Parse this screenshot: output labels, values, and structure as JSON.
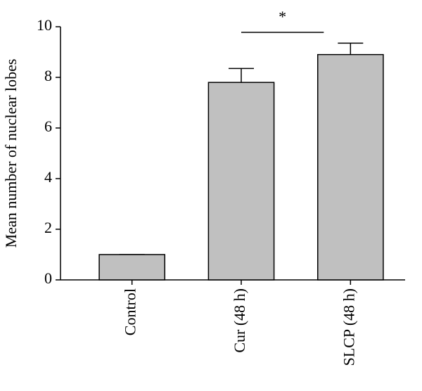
{
  "chart_data": {
    "type": "bar",
    "y_label": "Mean number of nuclear lobes",
    "categories": [
      "Control",
      "Cur (48 h)",
      "SLCP (48 h)"
    ],
    "values": [
      1.0,
      7.8,
      8.9
    ],
    "errors": [
      0,
      0.55,
      0.45
    ],
    "color": "#c0c0c0",
    "ylim": [
      0,
      10
    ],
    "yticks": [
      0,
      2,
      4,
      6,
      8,
      10
    ],
    "annotation": "*"
  }
}
